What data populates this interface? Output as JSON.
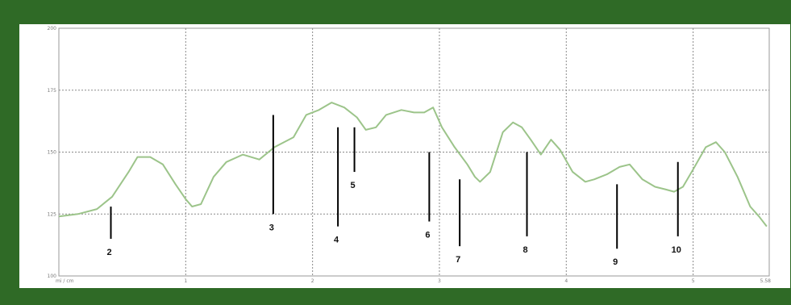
{
  "chart_data": {
    "type": "line",
    "title": "",
    "xlabel": "",
    "ylabel": "",
    "xlim": [
      0,
      5.6
    ],
    "ylim": [
      100,
      200
    ],
    "x_tick_labels": [
      "mi / cm",
      "1",
      "2",
      "3",
      "4",
      "5",
      "5.58"
    ],
    "y_tick_labels": [
      "200",
      "175",
      "150",
      "125",
      "100"
    ],
    "grid": true,
    "line_color": "#9cc48a",
    "series": [
      {
        "name": "",
        "points": [
          [
            0.0,
            124
          ],
          [
            0.15,
            125
          ],
          [
            0.3,
            127
          ],
          [
            0.42,
            132
          ],
          [
            0.55,
            142
          ],
          [
            0.62,
            148
          ],
          [
            0.72,
            148
          ],
          [
            0.82,
            145
          ],
          [
            0.92,
            137
          ],
          [
            1.0,
            131
          ],
          [
            1.05,
            128
          ],
          [
            1.12,
            129
          ],
          [
            1.22,
            140
          ],
          [
            1.32,
            146
          ],
          [
            1.45,
            149
          ],
          [
            1.58,
            147
          ],
          [
            1.7,
            152
          ],
          [
            1.85,
            156
          ],
          [
            1.95,
            165
          ],
          [
            2.05,
            167
          ],
          [
            2.15,
            170
          ],
          [
            2.25,
            168
          ],
          [
            2.35,
            164
          ],
          [
            2.42,
            159
          ],
          [
            2.5,
            160
          ],
          [
            2.58,
            165
          ],
          [
            2.7,
            167
          ],
          [
            2.8,
            166
          ],
          [
            2.88,
            166
          ],
          [
            2.95,
            168
          ],
          [
            3.02,
            160
          ],
          [
            3.12,
            152
          ],
          [
            3.22,
            145
          ],
          [
            3.28,
            140
          ],
          [
            3.32,
            138
          ],
          [
            3.4,
            142
          ],
          [
            3.5,
            158
          ],
          [
            3.58,
            162
          ],
          [
            3.65,
            160
          ],
          [
            3.72,
            155
          ],
          [
            3.8,
            149
          ],
          [
            3.88,
            155
          ],
          [
            3.95,
            151
          ],
          [
            4.05,
            142
          ],
          [
            4.15,
            138
          ],
          [
            4.22,
            139
          ],
          [
            4.32,
            141
          ],
          [
            4.42,
            144
          ],
          [
            4.5,
            145
          ],
          [
            4.6,
            139
          ],
          [
            4.7,
            136
          ],
          [
            4.78,
            135
          ],
          [
            4.85,
            134
          ],
          [
            4.92,
            136
          ],
          [
            5.0,
            143
          ],
          [
            5.1,
            152
          ],
          [
            5.18,
            154
          ],
          [
            5.25,
            150
          ],
          [
            5.35,
            140
          ],
          [
            5.45,
            128
          ],
          [
            5.52,
            124
          ],
          [
            5.58,
            120
          ]
        ]
      }
    ],
    "markers": [
      {
        "label": "2",
        "x": 0.41,
        "top": 128,
        "bottom": 115
      },
      {
        "label": "3",
        "x": 1.69,
        "top": 165,
        "bottom": 125
      },
      {
        "label": "4",
        "x": 2.2,
        "top": 160,
        "bottom": 120
      },
      {
        "label": "5",
        "x": 2.33,
        "top": 160,
        "bottom": 142
      },
      {
        "label": "6",
        "x": 2.92,
        "top": 150,
        "bottom": 122
      },
      {
        "label": "7",
        "x": 3.16,
        "top": 139,
        "bottom": 112
      },
      {
        "label": "8",
        "x": 3.69,
        "top": 150,
        "bottom": 116
      },
      {
        "label": "9",
        "x": 4.4,
        "top": 137,
        "bottom": 111
      },
      {
        "label": "10",
        "x": 4.88,
        "top": 146,
        "bottom": 116
      }
    ]
  }
}
